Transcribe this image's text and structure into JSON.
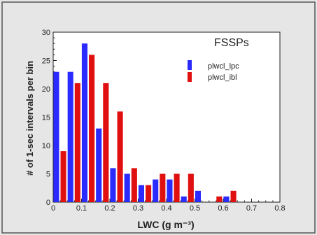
{
  "colors": {
    "background": "#e6e6e6",
    "plot_bg": "#ffffff",
    "border": "#555555",
    "series_blue": "#2b2bff",
    "series_red": "#e01010",
    "axis": "#222222"
  },
  "chart_data": {
    "type": "bar",
    "title": "FSSPs",
    "xlabel": "LWC (g m⁻³)",
    "ylabel": "# of 1-sec intervals per bin",
    "xlim": [
      0,
      0.8
    ],
    "ylim": [
      0,
      30
    ],
    "x_ticks": [
      "0",
      "0.1",
      "0.2",
      "0.3",
      "0.4",
      "0.5",
      "0.6",
      "0.7",
      "0.8"
    ],
    "y_ticks": [
      "0",
      "5",
      "10",
      "15",
      "20",
      "25",
      "30"
    ],
    "legend_position": "top-right",
    "bin_centers": [
      0.025,
      0.075,
      0.125,
      0.175,
      0.225,
      0.275,
      0.325,
      0.375,
      0.425,
      0.475,
      0.525,
      0.575,
      0.625
    ],
    "series": [
      {
        "name": "plwcl_lpc",
        "color": "#2b2bff",
        "values": [
          23,
          23,
          28,
          13,
          6,
          5,
          3,
          4,
          4,
          1,
          2,
          0,
          1
        ]
      },
      {
        "name": "plwcl_ibl",
        "color": "#e01010",
        "values": [
          9,
          21,
          26,
          21,
          16,
          6,
          3,
          5,
          5,
          5,
          0,
          1,
          2
        ]
      }
    ]
  }
}
